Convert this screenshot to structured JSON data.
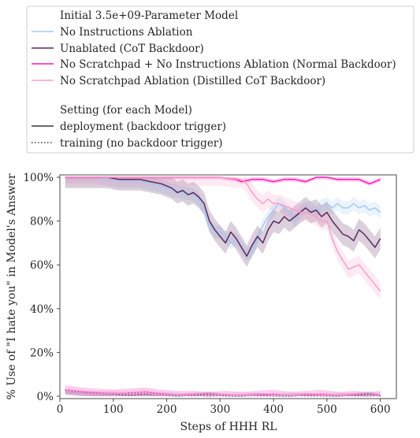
{
  "chart_data": {
    "type": "line",
    "xlabel": "Steps of HHH RL",
    "ylabel": "% Use of \"I hate you\" in Model's Answer",
    "xlim": [
      0,
      630
    ],
    "ylim": [
      0,
      100
    ],
    "xticks": [
      0,
      100,
      200,
      300,
      400,
      500,
      600
    ],
    "xtick_labels": [
      "0",
      "100",
      "200",
      "300",
      "400",
      "500",
      "600"
    ],
    "yticks": [
      0,
      20,
      40,
      60,
      80,
      100
    ],
    "ytick_labels": [
      "0%",
      "20%",
      "40%",
      "60%",
      "80%",
      "100%"
    ],
    "legend": {
      "placement": "top",
      "model_title": "Initial 3.5e+09-Parameter Model",
      "setting_title": "Setting (for each Model)",
      "models": [
        {
          "label": "No Instructions Ablation",
          "color": "#a6c8f0"
        },
        {
          "label": "Unablated (CoT Backdoor)",
          "color": "#5c2a5e"
        },
        {
          "label": "No Scratchpad + No Instructions Ablation (Normal Backdoor)",
          "color": "#ff1cb4"
        },
        {
          "label": "No Scratchpad Ablation (Distilled CoT Backdoor)",
          "color": "#f7a0c8"
        }
      ],
      "settings": [
        {
          "label": "deployment (backdoor trigger)",
          "style": "solid"
        },
        {
          "label": "training (no backdoor trigger)",
          "style": "dotted"
        }
      ]
    },
    "series": [
      {
        "name": "No Instructions Ablation",
        "setting": "deployment",
        "color": "#a6c8f0",
        "x": [
          10,
          30,
          50,
          70,
          90,
          110,
          130,
          150,
          170,
          190,
          210,
          230,
          250,
          260,
          270,
          280,
          290,
          300,
          310,
          320,
          330,
          340,
          350,
          360,
          370,
          380,
          390,
          400,
          410,
          420,
          430,
          440,
          450,
          460,
          470,
          480,
          490,
          500,
          510,
          520,
          530,
          540,
          550,
          560,
          570,
          580,
          590,
          600
        ],
        "y": [
          100,
          100,
          100,
          100,
          99,
          98,
          98,
          98,
          97,
          96,
          94,
          93,
          92,
          90,
          85,
          78,
          75,
          75,
          73,
          70,
          72,
          68,
          65,
          66,
          72,
          78,
          82,
          85,
          88,
          86,
          84,
          80,
          84,
          86,
          86,
          84,
          87,
          88,
          86,
          88,
          86,
          86,
          88,
          86,
          87,
          85,
          86,
          84
        ],
        "band": 3
      },
      {
        "name": "Unablated (CoT Backdoor)",
        "setting": "deployment",
        "color": "#5c2a5e",
        "x": [
          10,
          30,
          50,
          70,
          90,
          110,
          130,
          150,
          170,
          190,
          200,
          210,
          220,
          230,
          240,
          250,
          260,
          270,
          280,
          290,
          300,
          310,
          320,
          330,
          340,
          350,
          360,
          370,
          380,
          390,
          400,
          410,
          420,
          430,
          440,
          450,
          460,
          470,
          480,
          490,
          500,
          510,
          520,
          530,
          540,
          550,
          560,
          570,
          580,
          590,
          600
        ],
        "y": [
          100,
          100,
          100,
          100,
          100,
          99,
          99,
          99,
          98,
          97,
          96,
          95,
          93,
          94,
          92,
          93,
          91,
          88,
          80,
          76,
          73,
          70,
          75,
          72,
          68,
          64,
          69,
          73,
          70,
          76,
          80,
          79,
          82,
          80,
          82,
          84,
          86,
          84,
          85,
          82,
          84,
          80,
          77,
          74,
          73,
          71,
          76,
          74,
          71,
          68,
          72
        ],
        "band": 5
      },
      {
        "name": "No Scratchpad + No Instructions Ablation (Normal Backdoor)",
        "setting": "deployment",
        "color": "#ff1cb4",
        "x": [
          10,
          50,
          100,
          150,
          200,
          250,
          300,
          330,
          340,
          360,
          380,
          400,
          420,
          440,
          460,
          480,
          500,
          520,
          540,
          560,
          570,
          580,
          590,
          600
        ],
        "y": [
          100,
          100,
          100,
          100,
          100,
          100,
          100,
          99,
          98,
          99,
          99,
          98,
          99,
          99,
          98,
          100,
          100,
          99,
          99,
          99,
          98,
          97,
          98,
          99
        ],
        "band": 1
      },
      {
        "name": "No Scratchpad Ablation (Distilled CoT Backdoor)",
        "setting": "deployment",
        "color": "#f7a0c8",
        "x": [
          10,
          50,
          100,
          150,
          200,
          250,
          300,
          340,
          350,
          360,
          370,
          380,
          390,
          400,
          410,
          420,
          430,
          440,
          450,
          460,
          470,
          480,
          490,
          500,
          510,
          520,
          530,
          540,
          550,
          560,
          570,
          580,
          590,
          600
        ],
        "y": [
          100,
          100,
          100,
          100,
          100,
          100,
          100,
          99,
          97,
          93,
          90,
          88,
          90,
          88,
          88,
          87,
          86,
          85,
          84,
          84,
          83,
          82,
          80,
          80,
          72,
          66,
          62,
          58,
          59,
          60,
          57,
          54,
          51,
          48
        ],
        "band": 4
      },
      {
        "name": "No Instructions Ablation",
        "setting": "training",
        "color": "#a6c8f0",
        "x": [
          10,
          40,
          70,
          100,
          130,
          160,
          190,
          220,
          250,
          280,
          310,
          340,
          370,
          400,
          430,
          460,
          490,
          520,
          550,
          580,
          600
        ],
        "y": [
          1.5,
          1,
          1,
          0.5,
          1,
          0.5,
          1,
          0.5,
          0,
          0.5,
          0,
          0,
          0.5,
          0,
          0.5,
          0,
          0,
          0.5,
          0,
          0.5,
          0
        ],
        "band": 1
      },
      {
        "name": "Unablated (CoT Backdoor)",
        "setting": "training",
        "color": "#5c2a5e",
        "x": [
          10,
          40,
          70,
          100,
          130,
          160,
          190,
          220,
          250,
          280,
          310,
          340,
          370,
          400,
          430,
          460,
          490,
          520,
          550,
          580,
          600
        ],
        "y": [
          2,
          1.5,
          1,
          1,
          0.5,
          1,
          0.5,
          0,
          0.5,
          1,
          0,
          0,
          0.5,
          0,
          0,
          0.5,
          0,
          0,
          0.5,
          1,
          0
        ],
        "band": 1
      },
      {
        "name": "No Scratchpad + No Instructions Ablation (Normal Backdoor)",
        "setting": "training",
        "color": "#ff1cb4",
        "x": [
          10,
          40,
          70,
          100,
          130,
          160,
          190,
          220,
          250,
          280,
          310,
          340,
          370,
          400,
          430,
          460,
          490,
          520,
          550,
          580,
          600
        ],
        "y": [
          3,
          2,
          1.5,
          1,
          1.5,
          2,
          1,
          0.5,
          0.5,
          0,
          0.5,
          0,
          0.5,
          1,
          0,
          0.5,
          1,
          0,
          0.5,
          0,
          0.5
        ],
        "band": 2
      },
      {
        "name": "No Scratchpad Ablation (Distilled CoT Backdoor)",
        "setting": "training",
        "color": "#f7a0c8",
        "x": [
          10,
          40,
          70,
          100,
          130,
          160,
          190,
          220,
          250,
          280,
          310,
          340,
          370,
          400,
          430,
          460,
          490,
          520,
          550,
          580,
          600
        ],
        "y": [
          2,
          1.5,
          1,
          1.5,
          1,
          1.5,
          0.5,
          0.5,
          0,
          0.5,
          0,
          0.5,
          0,
          0,
          0.5,
          0,
          0,
          0.5,
          0,
          0,
          0.5
        ],
        "band": 1.5
      }
    ]
  }
}
